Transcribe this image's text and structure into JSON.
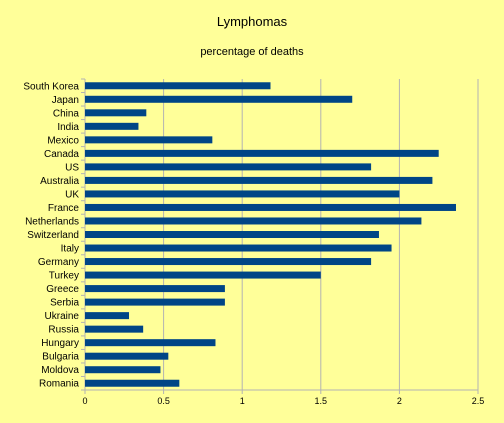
{
  "chart_data": {
    "type": "bar",
    "orientation": "horizontal",
    "title": "Lymphomas",
    "subtitle": "percentage of deaths",
    "xlabel": "",
    "ylabel": "",
    "categories": [
      "South Korea",
      "Japan",
      "China",
      "India",
      "Mexico",
      "Canada",
      "US",
      "Australia",
      "UK",
      "France",
      "Netherlands",
      "Switzerland",
      "Italy",
      "Germany",
      "Turkey",
      "Greece",
      "Serbia",
      "Ukraine",
      "Russia",
      "Hungary",
      "Bulgaria",
      "Moldova",
      "Romania"
    ],
    "values": [
      1.18,
      1.7,
      0.39,
      0.34,
      0.81,
      2.25,
      1.82,
      2.21,
      2.0,
      2.36,
      2.14,
      1.87,
      1.95,
      1.82,
      1.5,
      0.89,
      0.89,
      0.28,
      0.37,
      0.83,
      0.53,
      0.48,
      0.6
    ],
    "xlim": [
      0,
      2.5
    ],
    "xticks": [
      "0",
      "0.5",
      "1",
      "1.5",
      "2",
      "2.5"
    ],
    "grid": true,
    "bar_color": "#004586",
    "background": "#ffff99"
  }
}
